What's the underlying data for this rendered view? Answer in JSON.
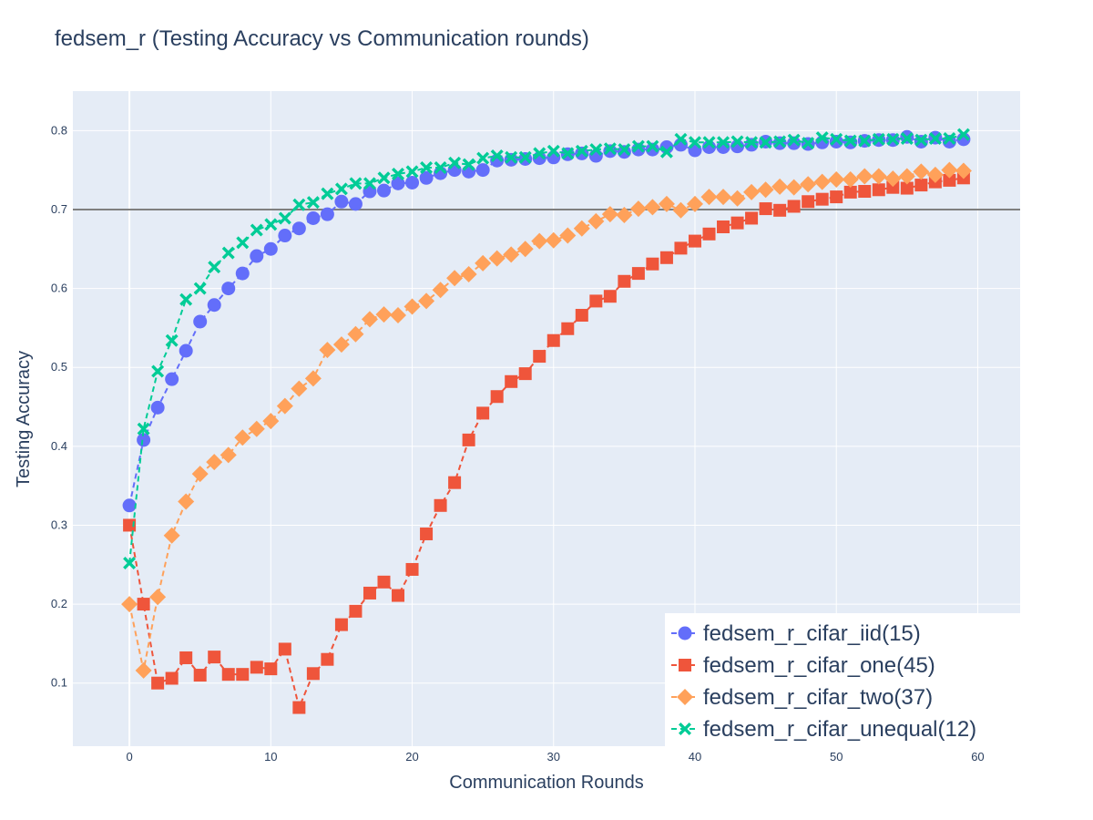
{
  "chart_data": {
    "type": "line",
    "title": "fedsem_r (Testing Accuracy vs Communication rounds)",
    "xlabel": "Communication Rounds",
    "ylabel": "Testing Accuracy",
    "xlim": [
      -4,
      63
    ],
    "ylim": [
      0.02,
      0.85
    ],
    "xticks": [
      0,
      10,
      20,
      30,
      40,
      50,
      60
    ],
    "yticks": [
      0.1,
      0.2,
      0.3,
      0.4,
      0.5,
      0.6,
      0.7,
      0.8
    ],
    "reference_line": 0.7,
    "grid": true,
    "legend_position": "bottom-right",
    "x": [
      0,
      1,
      2,
      3,
      4,
      5,
      6,
      7,
      8,
      9,
      10,
      11,
      12,
      13,
      14,
      15,
      16,
      17,
      18,
      19,
      20,
      21,
      22,
      23,
      24,
      25,
      26,
      27,
      28,
      29,
      30,
      31,
      32,
      33,
      34,
      35,
      36,
      37,
      38,
      39,
      40,
      41,
      42,
      43,
      44,
      45,
      46,
      47,
      48,
      49,
      50,
      51,
      52,
      53,
      54,
      55,
      56,
      57,
      58,
      59
    ],
    "series": [
      {
        "name": "fedsem_r_cifar_iid(15)",
        "color": "#636efa",
        "marker": "circle",
        "values": [
          0.325,
          0.408,
          0.449,
          0.485,
          0.521,
          0.558,
          0.579,
          0.6,
          0.619,
          0.641,
          0.65,
          0.667,
          0.676,
          0.689,
          0.694,
          0.71,
          0.707,
          0.723,
          0.724,
          0.733,
          0.734,
          0.74,
          0.746,
          0.75,
          0.748,
          0.75,
          0.762,
          0.763,
          0.764,
          0.765,
          0.766,
          0.77,
          0.771,
          0.768,
          0.774,
          0.773,
          0.776,
          0.776,
          0.779,
          0.782,
          0.775,
          0.779,
          0.779,
          0.78,
          0.782,
          0.786,
          0.784,
          0.784,
          0.783,
          0.785,
          0.786,
          0.785,
          0.787,
          0.788,
          0.788,
          0.792,
          0.786,
          0.791,
          0.786,
          0.789
        ]
      },
      {
        "name": "fedsem_r_cifar_one(45)",
        "color": "#ef553b",
        "marker": "square",
        "values": [
          0.3,
          0.2,
          0.1,
          0.106,
          0.132,
          0.11,
          0.133,
          0.111,
          0.111,
          0.12,
          0.118,
          0.143,
          0.069,
          0.112,
          0.13,
          0.174,
          0.191,
          0.214,
          0.228,
          0.211,
          0.244,
          0.289,
          0.325,
          0.354,
          0.408,
          0.442,
          0.463,
          0.482,
          0.492,
          0.514,
          0.534,
          0.549,
          0.566,
          0.584,
          0.59,
          0.609,
          0.619,
          0.631,
          0.639,
          0.651,
          0.66,
          0.669,
          0.678,
          0.683,
          0.689,
          0.701,
          0.699,
          0.704,
          0.71,
          0.713,
          0.716,
          0.722,
          0.723,
          0.725,
          0.728,
          0.727,
          0.731,
          0.735,
          0.737,
          0.74
        ]
      },
      {
        "name": "fedsem_r_cifar_two(37)",
        "color": "#ffa15a",
        "marker": "diamond",
        "values": [
          0.2,
          0.116,
          0.209,
          0.287,
          0.33,
          0.365,
          0.38,
          0.389,
          0.411,
          0.422,
          0.432,
          0.451,
          0.473,
          0.486,
          0.522,
          0.529,
          0.542,
          0.561,
          0.567,
          0.566,
          0.577,
          0.584,
          0.598,
          0.613,
          0.618,
          0.632,
          0.638,
          0.643,
          0.65,
          0.66,
          0.661,
          0.667,
          0.676,
          0.685,
          0.694,
          0.693,
          0.701,
          0.703,
          0.707,
          0.699,
          0.707,
          0.716,
          0.716,
          0.714,
          0.722,
          0.725,
          0.729,
          0.728,
          0.732,
          0.735,
          0.738,
          0.738,
          0.742,
          0.742,
          0.739,
          0.742,
          0.748,
          0.744,
          0.75,
          0.749
        ]
      },
      {
        "name": "fedsem_r_cifar_unequal(12)",
        "color": "#00cc96",
        "marker": "x",
        "values": [
          0.252,
          0.422,
          0.495,
          0.534,
          0.586,
          0.6,
          0.627,
          0.645,
          0.658,
          0.674,
          0.681,
          0.689,
          0.706,
          0.709,
          0.72,
          0.726,
          0.733,
          0.733,
          0.74,
          0.745,
          0.748,
          0.753,
          0.753,
          0.759,
          0.757,
          0.765,
          0.768,
          0.766,
          0.766,
          0.771,
          0.774,
          0.771,
          0.774,
          0.776,
          0.777,
          0.776,
          0.78,
          0.78,
          0.773,
          0.789,
          0.785,
          0.785,
          0.785,
          0.786,
          0.785,
          0.785,
          0.786,
          0.788,
          0.784,
          0.791,
          0.789,
          0.787,
          0.787,
          0.789,
          0.789,
          0.79,
          0.788,
          0.79,
          0.79,
          0.795
        ]
      }
    ]
  }
}
